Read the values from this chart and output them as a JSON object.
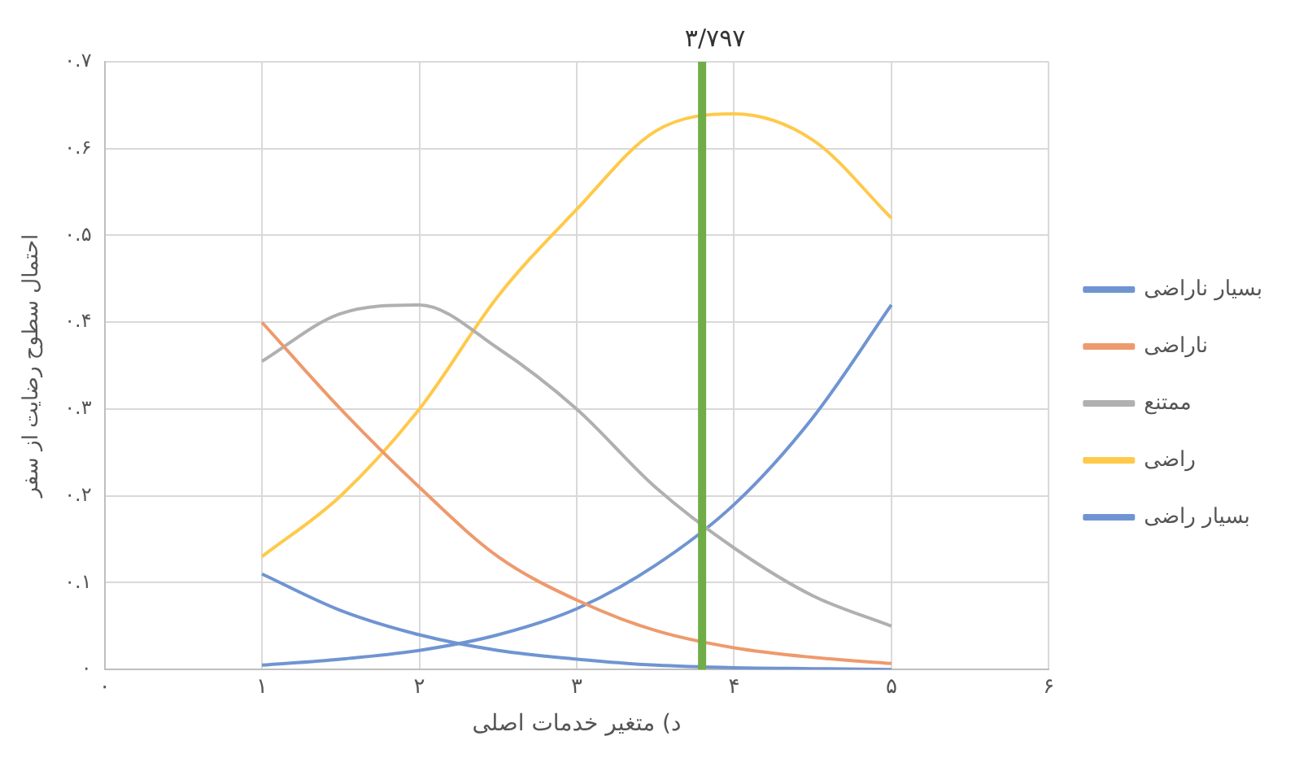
{
  "chart_data": {
    "type": "line",
    "xlabel": "د) متغیر خدمات اصلی",
    "ylabel": "احتمال سطوح رضایت از سفر",
    "x": [
      1,
      1.5,
      2,
      2.5,
      3,
      3.5,
      4,
      4.5,
      5
    ],
    "series": [
      {
        "name": "بسیار ناراضی",
        "color": "#6f94d2",
        "values": [
          0.11,
          0.068,
          0.04,
          0.022,
          0.012,
          0.005,
          0.002,
          0.001,
          0
        ]
      },
      {
        "name": "ناراضی",
        "color": "#ee9a6d",
        "values": [
          0.4,
          0.3,
          0.21,
          0.13,
          0.08,
          0.045,
          0.025,
          0.014,
          0.007
        ]
      },
      {
        "name": "ممتنع",
        "color": "#b0b0b0",
        "values": [
          0.355,
          0.41,
          0.42,
          0.37,
          0.3,
          0.21,
          0.14,
          0.085,
          0.05
        ]
      },
      {
        "name": "راضی",
        "color": "#ffc94a",
        "values": [
          0.13,
          0.2,
          0.3,
          0.43,
          0.53,
          0.62,
          0.64,
          0.61,
          0.52
        ]
      },
      {
        "name": "بسیار راضی",
        "color": "#6f94d2",
        "values": [
          0.005,
          0.012,
          0.022,
          0.04,
          0.07,
          0.12,
          0.19,
          0.29,
          0.42
        ]
      }
    ],
    "xlim": [
      0,
      6
    ],
    "xticks": [
      {
        "value": 0,
        "label": "۰"
      },
      {
        "value": 1,
        "label": "۱"
      },
      {
        "value": 2,
        "label": "۲"
      },
      {
        "value": 3,
        "label": "۳"
      },
      {
        "value": 4,
        "label": "۴"
      },
      {
        "value": 5,
        "label": "۵"
      },
      {
        "value": 6,
        "label": "۶"
      }
    ],
    "ylim": [
      0,
      0.7
    ],
    "yticks": [
      {
        "value": 0,
        "label": "۰"
      },
      {
        "value": 0.1,
        "label": "۰.۱"
      },
      {
        "value": 0.2,
        "label": "۰.۲"
      },
      {
        "value": 0.3,
        "label": "۰.۳"
      },
      {
        "value": 0.4,
        "label": "۰.۴"
      },
      {
        "value": 0.5,
        "label": "۰.۵"
      },
      {
        "value": 0.6,
        "label": "۰.۶"
      },
      {
        "value": 0.7,
        "label": "۰.۷"
      }
    ],
    "ref_lines": [
      {
        "axis": "x",
        "value": 3.797,
        "label": "۳/۷۹۷",
        "color": "#70ad47"
      }
    ],
    "grid": true,
    "legend": "right",
    "marker": "none",
    "line_style": "solid"
  }
}
